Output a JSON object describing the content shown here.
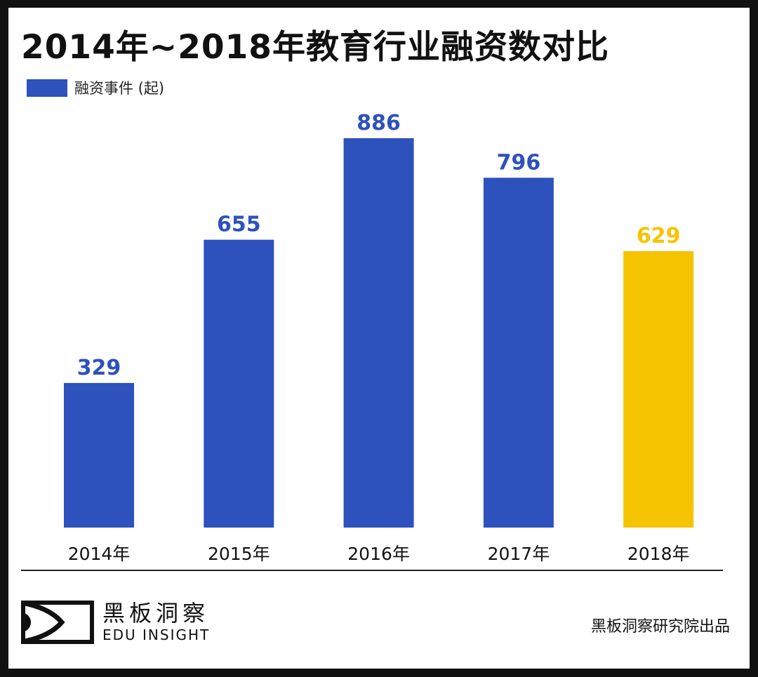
{
  "chart_data": {
    "type": "bar",
    "title": "2014年~2018年教育行业融资数对比",
    "categories": [
      "2014年",
      "2015年",
      "2016年",
      "2017年",
      "2018年"
    ],
    "series": [
      {
        "name": "融资事件 (起)",
        "values": [
          329,
          655,
          886,
          796,
          629
        ]
      }
    ],
    "bar_colors": [
      "#2d51bd",
      "#2d51bd",
      "#2d51bd",
      "#2d51bd",
      "#f6c300"
    ],
    "label_colors": [
      "#2d51bd",
      "#2d51bd",
      "#2d51bd",
      "#2d51bd",
      "#f6c300"
    ],
    "ylim": [
      0,
      886
    ],
    "grid": false,
    "legend": "top-left"
  },
  "legend_color": "#2d51bd",
  "footer": {
    "logo_cn": "黑板洞察",
    "logo_en": "EDU INSIGHT",
    "credit": "黑板洞察研究院出品"
  }
}
